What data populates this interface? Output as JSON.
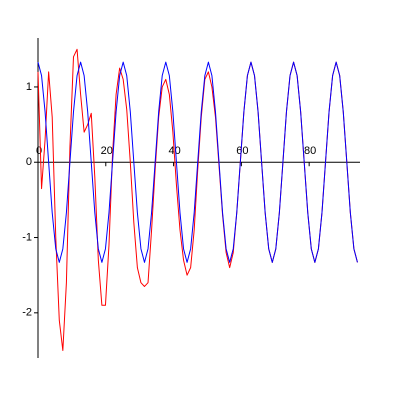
{
  "chart_data": {
    "type": "line",
    "x": [
      0,
      1.05,
      2.09,
      3.14,
      4.19,
      5.24,
      6.28,
      7.33,
      8.38,
      9.42,
      10.47,
      11.52,
      12.57,
      13.61,
      14.66,
      15.71,
      16.76,
      17.8,
      18.85,
      19.9,
      20.94,
      21.99,
      23.04,
      24.09,
      25.13,
      26.18,
      27.23,
      28.27,
      29.32,
      30.37,
      31.42,
      32.46,
      33.51,
      34.56,
      35.6,
      36.65,
      37.7,
      38.75,
      39.79,
      40.84,
      41.89,
      42.94,
      43.98,
      45.03,
      46.08,
      47.12,
      48.17,
      49.22,
      50.27,
      51.31,
      52.36,
      53.41,
      54.45,
      55.5,
      56.55,
      57.6,
      58.64,
      59.69,
      60.74,
      61.78,
      62.83,
      63.88,
      64.93,
      65.97,
      67.02,
      68.07,
      69.12,
      70.16,
      71.21,
      72.26,
      73.3,
      74.35,
      75.4,
      76.45,
      77.49,
      78.54,
      79.59,
      80.63,
      81.68,
      82.73,
      83.78,
      84.82,
      85.87,
      86.92,
      87.96,
      89.01,
      90.06,
      91.11,
      92.15,
      93.2,
      94.25
    ],
    "series": [
      {
        "color": "#ff0000",
        "values": [
          1.2,
          -0.35,
          0.3,
          1.2,
          0.6,
          -1.0,
          -2.1,
          -2.5,
          -1.6,
          0.2,
          1.4,
          1.5,
          0.9,
          0.4,
          0.5,
          0.65,
          -0.2,
          -1.3,
          -1.9,
          -1.9,
          -1.1,
          0.1,
          0.9,
          1.25,
          1.1,
          0.7,
          0,
          -0.8,
          -1.4,
          -1.6,
          -1.65,
          -1.6,
          -0.9,
          -0.1,
          0.6,
          1.0,
          1.1,
          0.9,
          0.4,
          -0.3,
          -0.9,
          -1.3,
          -1.5,
          -1.4,
          -0.9,
          -0.1,
          0.6,
          1.1,
          1.2,
          1.0,
          0.6,
          -0.05,
          -0.7,
          -1.2,
          -1.4,
          -1.2,
          -0.67,
          0,
          0.67,
          1.15,
          1.33,
          1.15,
          0.67,
          0,
          -0.67,
          -1.15,
          -1.33,
          -1.15,
          -0.67,
          0,
          0.67,
          1.15,
          1.33,
          1.15,
          0.67,
          0,
          -0.67,
          -1.15,
          -1.33,
          -1.15,
          -0.67,
          0,
          0.67,
          1.15,
          1.33,
          1.15,
          0.67,
          0,
          -0.67,
          -1.15,
          -1.33
        ]
      },
      {
        "color": "#0000ff",
        "values": [
          1.33,
          1.15,
          0.67,
          0,
          -0.67,
          -1.15,
          -1.33,
          -1.15,
          -0.67,
          0,
          0.67,
          1.15,
          1.33,
          1.15,
          0.67,
          0,
          -0.67,
          -1.15,
          -1.33,
          -1.15,
          -0.67,
          0,
          0.67,
          1.15,
          1.33,
          1.15,
          0.67,
          0,
          -0.67,
          -1.15,
          -1.33,
          -1.15,
          -0.67,
          0,
          0.67,
          1.15,
          1.33,
          1.15,
          0.67,
          0,
          -0.67,
          -1.15,
          -1.33,
          -1.15,
          -0.67,
          0,
          0.67,
          1.15,
          1.33,
          1.15,
          0.67,
          0,
          -0.67,
          -1.15,
          -1.33,
          -1.15,
          -0.67,
          0,
          0.67,
          1.15,
          1.33,
          1.15,
          0.67,
          0,
          -0.67,
          -1.15,
          -1.33,
          -1.15,
          -0.67,
          0,
          0.67,
          1.15,
          1.33,
          1.15,
          0.67,
          0,
          -0.67,
          -1.15,
          -1.33,
          -1.15,
          -0.67,
          0,
          0.67,
          1.15,
          1.33,
          1.15,
          0.67,
          0,
          -0.67,
          -1.15,
          -1.33
        ]
      }
    ],
    "xlim": [
      0,
      95
    ],
    "ylim": [
      -2.6,
      1.65
    ],
    "xticks": [
      0,
      20,
      40,
      60,
      80
    ],
    "yticks": [
      -2,
      -1,
      0,
      1
    ]
  }
}
